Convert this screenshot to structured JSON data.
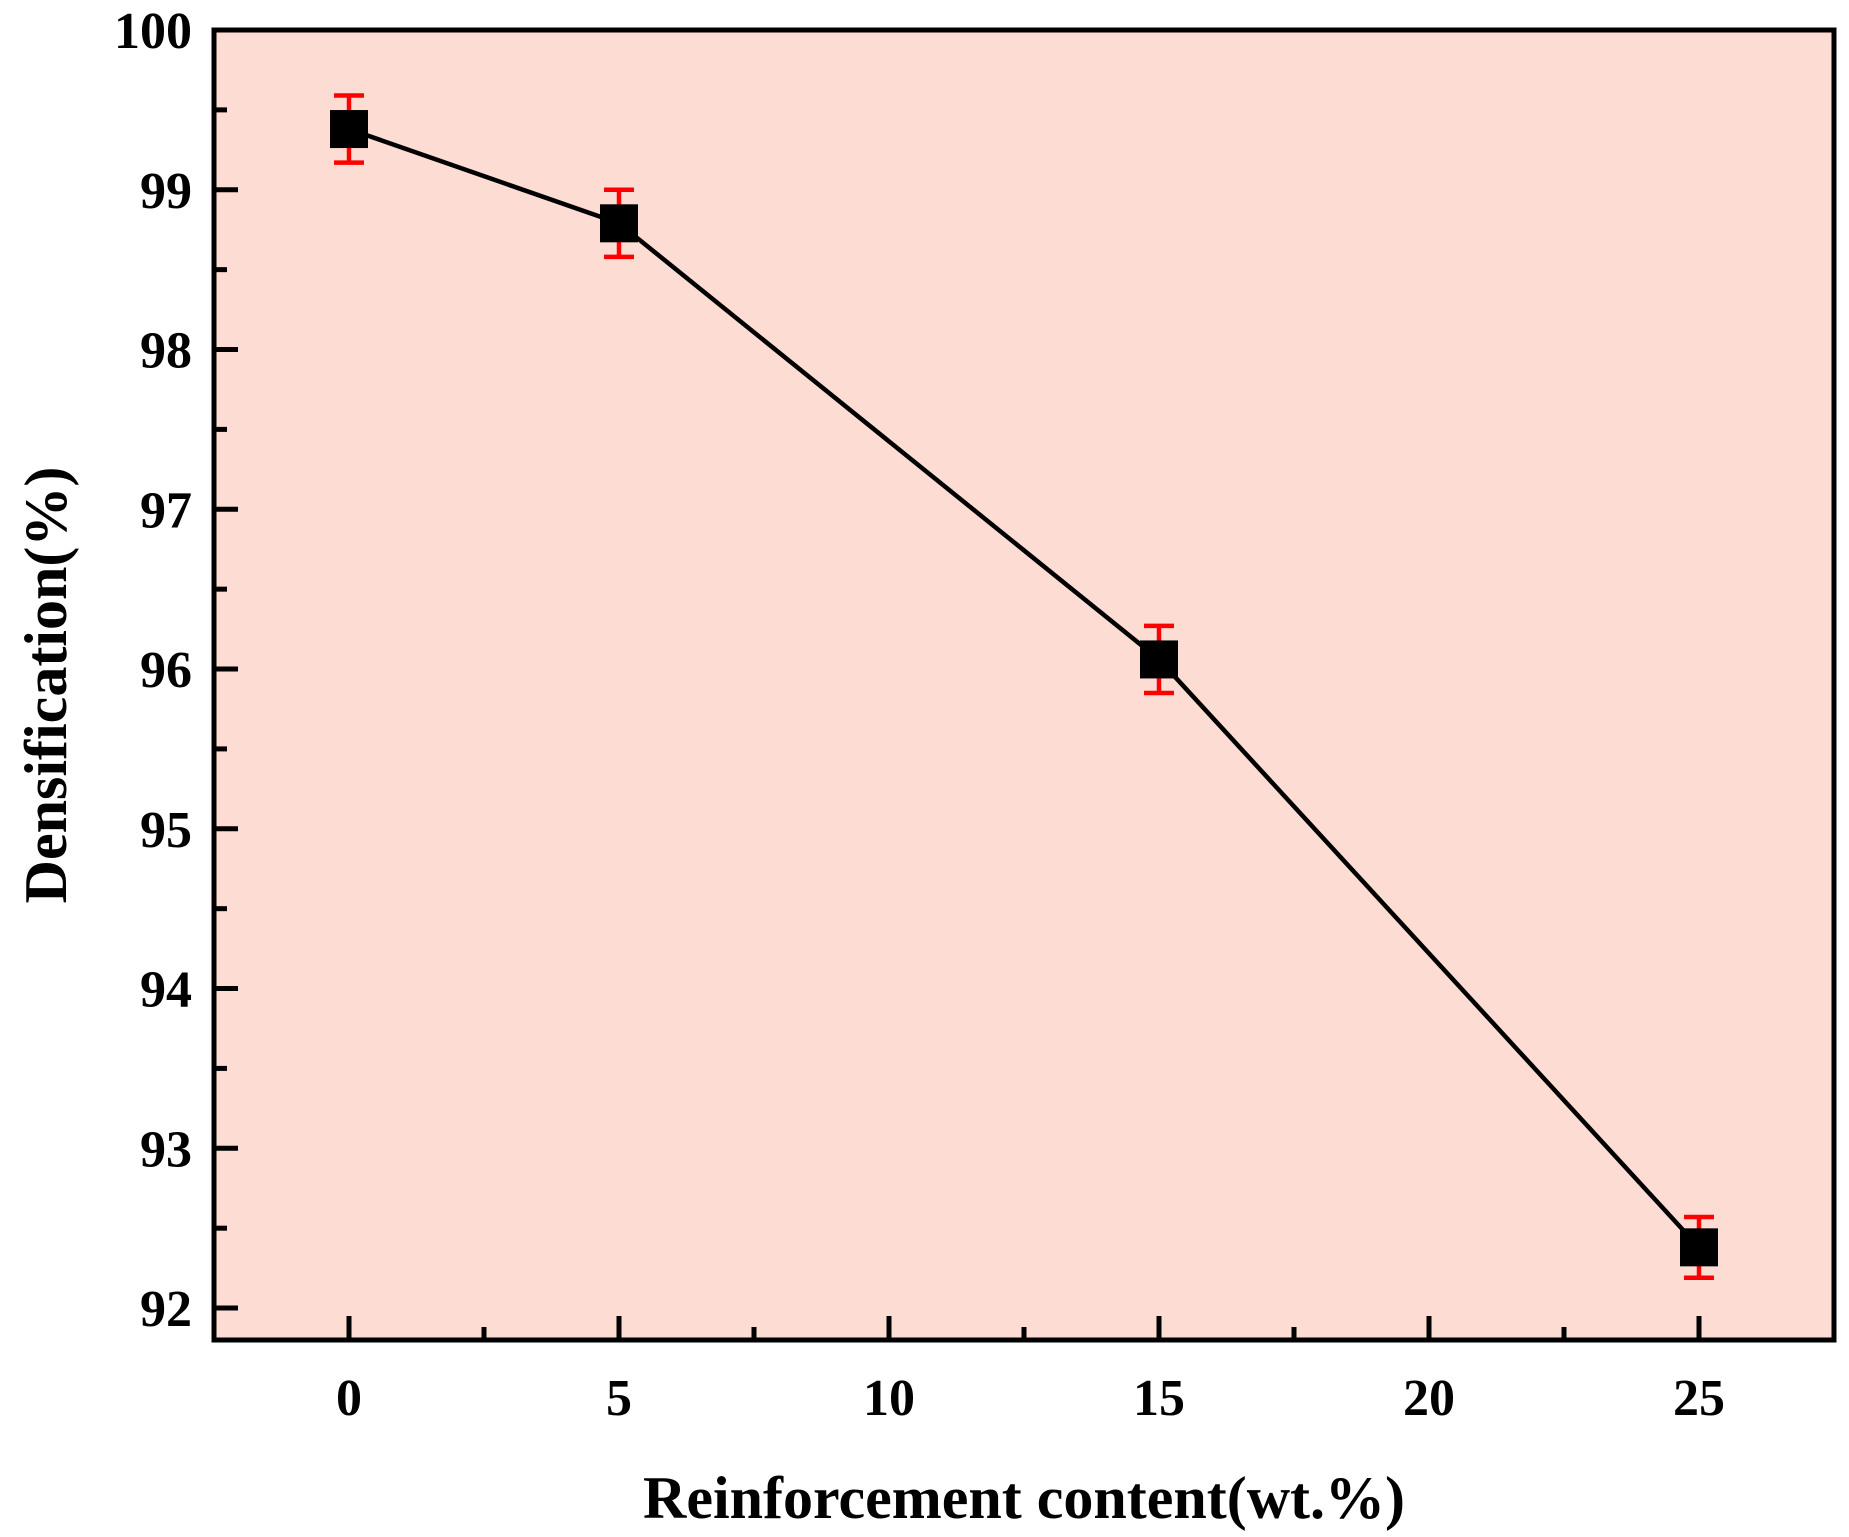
{
  "chart_data": {
    "type": "line",
    "xlabel": "Reinforcement content(wt.%)",
    "ylabel": "Densification(%)",
    "xlim": [
      -2.5,
      27.5
    ],
    "ylim": [
      91.8,
      100
    ],
    "x_ticks": [
      0,
      5,
      10,
      15,
      20,
      25
    ],
    "y_ticks": [
      92,
      93,
      94,
      95,
      96,
      97,
      98,
      99,
      100
    ],
    "grid": false,
    "plot_background": "#fcdcd3",
    "series": [
      {
        "color": "#000000",
        "error_color": "#ff0000",
        "marker": "square",
        "x": [
          0,
          5,
          15,
          25
        ],
        "y": [
          99.38,
          98.79,
          96.06,
          92.38
        ],
        "error": [
          0.21,
          0.21,
          0.21,
          0.19
        ]
      }
    ]
  }
}
